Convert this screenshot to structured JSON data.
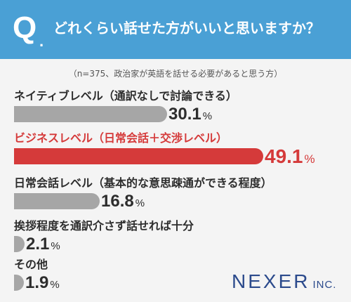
{
  "header": {
    "q_mark": "Q",
    "q_dot": ".",
    "question": "どれくらい話せた方がいいと思いますか？"
  },
  "respondents_note": "（n=375、政治家が英語を話せる必要があると思う方）",
  "colors": {
    "header_bg": "#4aa0d5",
    "bar_default": "#a6a6a6",
    "bar_highlight": "#d53a3a",
    "brand": "#2b4a8c"
  },
  "chart_data": {
    "type": "bar",
    "orientation": "horizontal",
    "unit": "%",
    "xlim": [
      0,
      50
    ],
    "grid": false,
    "legend": "none",
    "highlight_index": 1,
    "categories": [
      "ネイティブレベル（通訳なしで討論できる）",
      "ビジネスレベル（日常会話＋交渉レベル）",
      "日常会話レベル（基本的な意思疎通ができる程度）",
      "挨拶程度を通訳介さず話せれば十分",
      "その他"
    ],
    "values": [
      30.1,
      49.1,
      16.8,
      2.1,
      1.9
    ],
    "value_labels": [
      "30.1",
      "49.1",
      "16.8",
      "2.1",
      "1.9"
    ]
  },
  "brand": {
    "name": "NEXER",
    "suffix": "INC."
  }
}
